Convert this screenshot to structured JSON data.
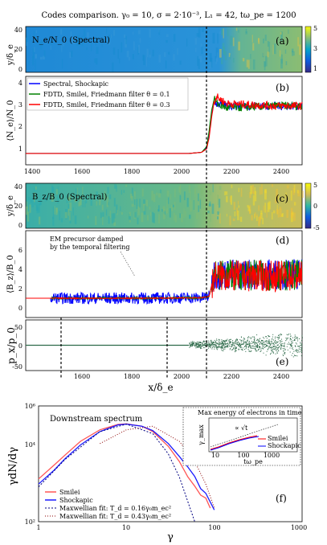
{
  "figure": {
    "title": "Codes comparison. γ₀ = 10, σ = 2·10⁻³, L₁ = 42, tω_pe = 1200"
  },
  "chart_data": [
    {
      "panel": "(a)",
      "type": "heatmap",
      "inset_label": "N_e/N_0 (Spectral)",
      "ylabel": "y/δ_e",
      "yticks": [
        "40",
        "20",
        "0"
      ],
      "xlim": [
        1400,
        2500
      ],
      "colorbar_ticks": [
        "5",
        "3",
        "1"
      ],
      "colorscale": [
        "#352a87",
        "#0f5cdd",
        "#1481d6",
        "#06a4ca",
        "#2eb7a4",
        "#87bf77",
        "#d1bb59",
        "#fec832",
        "#f9fb0e"
      ]
    },
    {
      "panel": "(b)",
      "type": "line",
      "ylabel": "⟨N_e⟩/N_0",
      "xlim": [
        1400,
        2500
      ],
      "ylim": [
        0.5,
        4.4
      ],
      "yticks": [
        "1",
        "2",
        "3",
        "4"
      ],
      "xticks": [
        "1400",
        "1600",
        "1800",
        "2000",
        "2200",
        "2400"
      ],
      "series": [
        {
          "name": "Spectral, Shockapic",
          "color": "#0000ff",
          "x": [
            1400,
            2050,
            2100,
            2120,
            2130,
            2140,
            2150,
            2160,
            2200,
            2300,
            2400,
            2500
          ],
          "values": [
            1.0,
            1.0,
            1.05,
            1.25,
            1.8,
            2.7,
            3.3,
            3.2,
            3.1,
            3.1,
            3.1,
            3.1
          ]
        },
        {
          "name": "FDTD, Smilei, Friedmann filter θ = 0.1",
          "color": "#008000",
          "x": [
            1400,
            2050,
            2100,
            2120,
            2130,
            2140,
            2150,
            2160,
            2200,
            2300,
            2400,
            2500
          ],
          "values": [
            1.0,
            1.0,
            1.05,
            1.3,
            2.0,
            2.9,
            3.4,
            3.2,
            3.0,
            3.05,
            3.1,
            3.1
          ]
        },
        {
          "name": "FDTD, Smilei, Friedmann filter θ = 0.3",
          "color": "#ff0000",
          "x": [
            1400,
            2050,
            2100,
            2120,
            2130,
            2140,
            2150,
            2160,
            2200,
            2300,
            2400,
            2500
          ],
          "values": [
            1.0,
            1.0,
            1.05,
            1.2,
            1.7,
            2.6,
            3.3,
            3.5,
            3.2,
            3.15,
            3.1,
            3.1
          ]
        }
      ]
    },
    {
      "panel": "(c)",
      "type": "heatmap",
      "inset_label": "B_z/B_0 (Spectral)",
      "ylabel": "y/δ_e",
      "yticks": [
        "40",
        "20",
        "0"
      ],
      "xlim": [
        1400,
        2500
      ],
      "colorbar_ticks": [
        "5",
        "0",
        "-5"
      ]
    },
    {
      "panel": "(d)",
      "type": "line",
      "ylabel": "⟨B_z⟩/B_0",
      "annotation": "EM precursor damped by the temporal filtering",
      "xlim": [
        1400,
        2500
      ],
      "ylim": [
        -1,
        8
      ],
      "yticks": [
        "0",
        "2",
        "4",
        "6"
      ],
      "series": [
        {
          "name": "Spectral, Shockapic",
          "color": "#0000ff",
          "mean_x": [
            1400,
            1500,
            1700,
            1900,
            2100,
            2130,
            2150,
            2300,
            2500
          ],
          "mean_y": [
            1.0,
            1.0,
            1.0,
            1.0,
            1.05,
            1.2,
            3.5,
            3.5,
            3.5
          ],
          "noise_x": [
            1500,
            2130
          ],
          "noise_amp": 0.6
        },
        {
          "name": "FDTD, Smilei, Friedmann filter θ = 0.1",
          "color": "#008000",
          "mean_x": [
            1400,
            1500,
            1700,
            1900,
            2100,
            2130,
            2150,
            2300,
            2500
          ],
          "mean_y": [
            1.0,
            1.0,
            1.0,
            1.0,
            1.05,
            1.2,
            3.4,
            3.4,
            3.4
          ],
          "noise_x": [
            1500,
            2130
          ],
          "noise_amp": 0.1
        },
        {
          "name": "FDTD, Smilei, Friedmann filter θ = 0.3",
          "color": "#ff0000",
          "mean_x": [
            1400,
            1500,
            1700,
            1900,
            2100,
            2130,
            2150,
            2300,
            2500
          ],
          "mean_y": [
            1.0,
            1.0,
            1.0,
            1.0,
            1.05,
            1.2,
            3.3,
            3.3,
            3.3
          ],
          "noise_x": [
            1500,
            2130
          ],
          "noise_amp": 0.05
        }
      ]
    },
    {
      "panel": "(e)",
      "type": "scatter",
      "ylabel": "p_x/p_0",
      "xlabel": "x/δ_e",
      "xlim": [
        1400,
        2500
      ],
      "ylim": [
        -50,
        50
      ],
      "yticks": [
        "50",
        "0",
        "-50"
      ],
      "xticks": [
        "1600",
        "1800",
        "2000",
        "2200",
        "2400"
      ],
      "color": "#2e6b4a",
      "beam_y": 0,
      "cloud_x": [
        2050,
        2500
      ],
      "cloud_halfwidth": [
        5,
        22
      ]
    },
    {
      "panel": "(f)",
      "type": "line",
      "title": "Downstream spectrum",
      "xlabel": "γ",
      "ylabel": "γdN/dγ",
      "xscale": "log",
      "yscale": "log",
      "xlim": [
        1,
        1000
      ],
      "ylim": [
        100,
        1000000
      ],
      "xticks": [
        "1",
        "10",
        "100",
        "1000"
      ],
      "yticks": [
        "10⁶",
        "10⁴",
        "10²"
      ],
      "series": [
        {
          "name": "Smilei",
          "color": "#ff5555",
          "x": [
            1,
            1.5,
            2,
            3,
            5,
            8,
            10,
            15,
            20,
            30,
            40,
            50,
            60,
            70,
            80,
            90
          ],
          "values": [
            3000,
            9000,
            20000,
            60000,
            150000,
            230000,
            240000,
            200000,
            130000,
            40000,
            12000,
            4000,
            2000,
            1000,
            600,
            300
          ]
        },
        {
          "name": "Shockapic",
          "color": "#1a1aff",
          "x": [
            1,
            1.5,
            2,
            3,
            5,
            8,
            10,
            15,
            20,
            30,
            40,
            50,
            60,
            70,
            80,
            100
          ],
          "values": [
            2000,
            6000,
            15000,
            45000,
            130000,
            220000,
            235000,
            200000,
            140000,
            50000,
            18000,
            7000,
            3500,
            1800,
            900,
            200
          ]
        },
        {
          "name": "Maxwellian fit: T_d = 0.16γ₀m_ec²",
          "color": "#000080",
          "dash": "2,2",
          "x": [
            1,
            2,
            5,
            10,
            20,
            30,
            40,
            60
          ],
          "values": [
            1600,
            14000,
            130000,
            235000,
            110000,
            22000,
            3500,
            100
          ]
        },
        {
          "name": "Maxwellian fit: T_d = 0.43γ₀m_ec²",
          "color": "#8b0000",
          "dash": "1,2",
          "x": [
            5,
            10,
            20,
            40,
            60,
            80,
            100
          ],
          "values": [
            50000,
            150000,
            200000,
            60000,
            12000,
            2000,
            300
          ]
        }
      ],
      "inset": {
        "title": "Max energy of electrons in time",
        "annotation": "∝ √t",
        "xlabel": "tω_pe",
        "ylabel": "γ_max",
        "xticks": [
          "10",
          "100",
          "1000"
        ],
        "series": [
          {
            "name": "Smilei",
            "color": "#ff0000"
          },
          {
            "name": "Shockapic",
            "color": "#0000ff"
          }
        ]
      }
    }
  ]
}
